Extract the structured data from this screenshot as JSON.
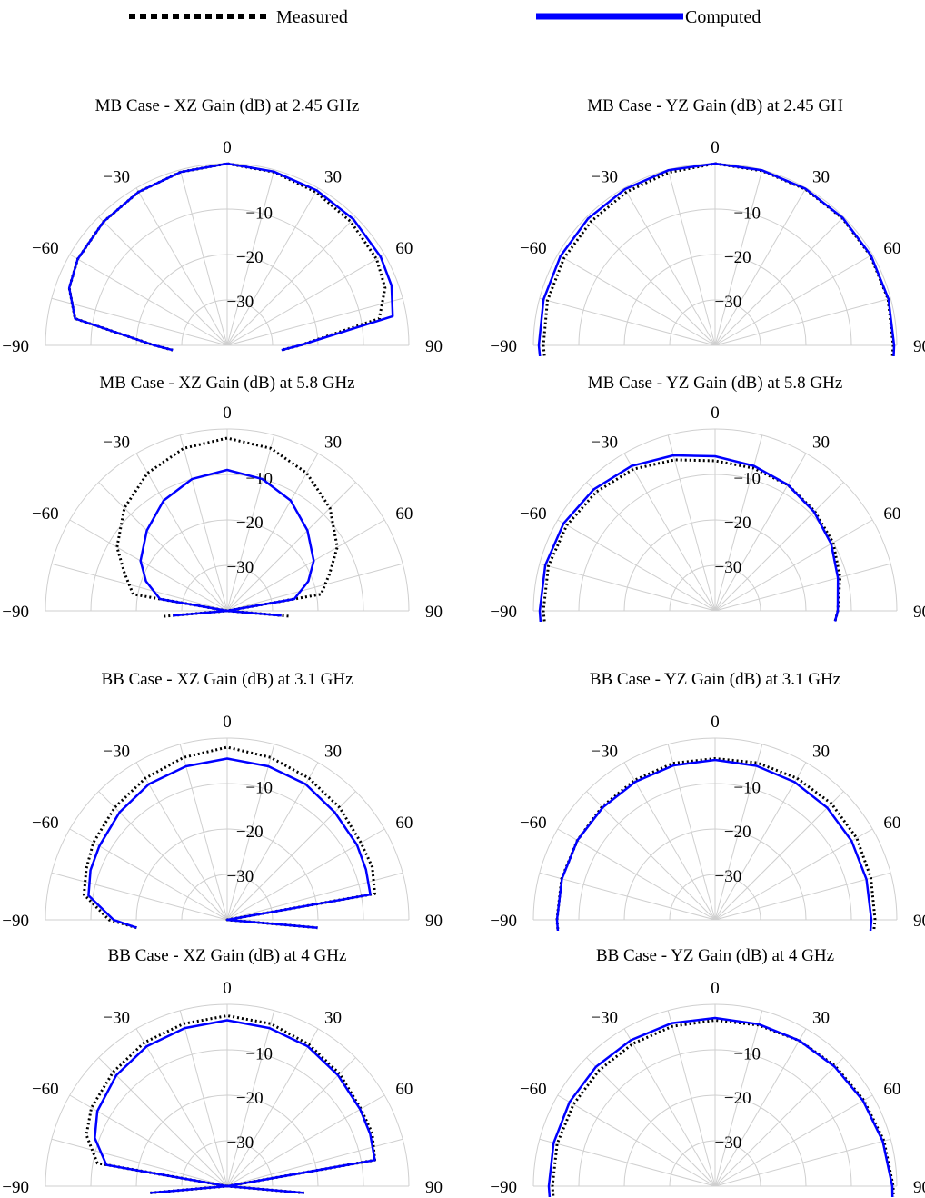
{
  "legend": {
    "measured_label": "Measured",
    "computed_label": "Computed",
    "measured_color": "#000000",
    "computed_color": "#0000ff",
    "placement": "top"
  },
  "polar_axes": {
    "r_ticks": [
      "-10",
      "-20",
      "-30"
    ],
    "theta_ticks": [
      "-90",
      "-60",
      "-30",
      "0",
      "30",
      "60",
      "90"
    ],
    "r_range": [
      -40,
      0
    ],
    "theta_range": [
      -90,
      90
    ],
    "grid": true
  },
  "chart_data": [
    {
      "type": "line",
      "title": "MB Case - XZ Gain (dB) at 2.45 GHz",
      "series": [
        {
          "name": "Measured",
          "style": "dotted",
          "theta": [
            -95,
            -90,
            -80,
            -70,
            -60,
            -45,
            -30,
            -15,
            0,
            15,
            30,
            45,
            60,
            70,
            80,
            90,
            95
          ],
          "r": [
            -28,
            -24,
            -6,
            -3,
            -2,
            -1.5,
            -1,
            -0.5,
            0,
            -0.5,
            -1,
            -1.5,
            -2,
            -3,
            -6,
            -24,
            -28
          ]
        },
        {
          "name": "Computed",
          "style": "solid",
          "theta": [
            -95,
            -90,
            -80,
            -70,
            -60,
            -45,
            -30,
            -15,
            0,
            15,
            30,
            45,
            60,
            70,
            80,
            90,
            95
          ],
          "r": [
            -28,
            -24,
            -6,
            -3,
            -2,
            -1.5,
            -1,
            -0.5,
            0,
            -0.4,
            -0.6,
            -0.7,
            -1,
            -1.5,
            -3,
            -24,
            -28
          ]
        }
      ]
    },
    {
      "type": "line",
      "title": "MB Case - YZ Gain (dB) at 2.45 GH",
      "series": [
        {
          "name": "Measured",
          "style": "dotted",
          "theta": [
            -95,
            -90,
            -75,
            -60,
            -45,
            -30,
            -15,
            0,
            15,
            30,
            45,
            60,
            75,
            90,
            95
          ],
          "r": [
            -2.4,
            -2.2,
            -1.8,
            -1.6,
            -1.4,
            -1,
            -0.6,
            0,
            -0.2,
            -0.3,
            -0.4,
            -0.5,
            -0.6,
            -0.8,
            -0.9
          ]
        },
        {
          "name": "Computed",
          "style": "solid",
          "theta": [
            -95,
            -90,
            -75,
            -60,
            -45,
            -30,
            -15,
            0,
            15,
            30,
            45,
            60,
            75,
            90,
            95
          ],
          "r": [
            -1.4,
            -1.2,
            -0.9,
            -0.7,
            -0.5,
            -0.3,
            -0.1,
            0,
            -0.1,
            -0.2,
            -0.3,
            -0.4,
            -0.5,
            -0.6,
            -0.6
          ]
        }
      ]
    },
    {
      "type": "line",
      "title": "MB Case - XZ Gain (dB) at 5.8 GHz",
      "series": [
        {
          "name": "Measured",
          "style": "dotted",
          "theta": [
            -95,
            -90,
            -80,
            -70,
            -60,
            -45,
            -30,
            -15,
            0,
            15,
            30,
            45,
            60,
            70,
            80,
            90,
            95
          ],
          "r": [
            -26,
            -40,
            -19,
            -16,
            -12,
            -8,
            -5,
            -3,
            -2,
            -3,
            -5,
            -8,
            -12,
            -16,
            -19,
            -40,
            -26
          ]
        },
        {
          "name": "Computed",
          "style": "solid",
          "theta": [
            -95,
            -90,
            -80,
            -70,
            -60,
            -45,
            -30,
            -15,
            0,
            15,
            30,
            45,
            60,
            70,
            80,
            90,
            95
          ],
          "r": [
            -28,
            -40,
            -25,
            -21,
            -18,
            -15,
            -12,
            -10,
            -9,
            -10,
            -12,
            -15,
            -18,
            -21,
            -25,
            -40,
            -28
          ]
        }
      ]
    },
    {
      "type": "line",
      "title": "MB Case - YZ Gain (dB) at 5.8 GHz",
      "series": [
        {
          "name": "Measured",
          "style": "dotted",
          "theta": [
            -95,
            -90,
            -75,
            -60,
            -45,
            -30,
            -15,
            0,
            15,
            30,
            45,
            60,
            75,
            90,
            95
          ],
          "r": [
            -2.4,
            -2.2,
            -2,
            -2.3,
            -3,
            -4,
            -5.6,
            -7,
            -7.5,
            -8,
            -9,
            -10,
            -11.5,
            -13,
            -13.5
          ]
        },
        {
          "name": "Computed",
          "style": "solid",
          "theta": [
            -95,
            -90,
            -75,
            -60,
            -45,
            -30,
            -15,
            0,
            15,
            30,
            45,
            60,
            75,
            90,
            95
          ],
          "r": [
            -1.5,
            -1.4,
            -1.3,
            -1.5,
            -2.2,
            -3.2,
            -4.6,
            -6,
            -7,
            -8,
            -9.2,
            -10.5,
            -12,
            -13,
            -13.5
          ]
        }
      ]
    },
    {
      "type": "line",
      "title": "BB Case - XZ Gain (dB) at 3.1 GHz",
      "series": [
        {
          "name": "Measured",
          "style": "dotted",
          "theta": [
            -95,
            -90,
            -80,
            -70,
            -60,
            -45,
            -30,
            -15,
            0,
            15,
            30,
            45,
            60,
            70,
            80,
            90,
            95
          ],
          "r": [
            -20,
            -14,
            -8,
            -7,
            -6,
            -5,
            -4,
            -3,
            -2,
            -3,
            -4,
            -5,
            -6,
            -6,
            -7,
            -40,
            -20
          ]
        },
        {
          "name": "Computed",
          "style": "solid",
          "theta": [
            -95,
            -90,
            -80,
            -70,
            -60,
            -45,
            -30,
            -15,
            0,
            15,
            30,
            45,
            60,
            70,
            80,
            90,
            95
          ],
          "r": [
            -20,
            -15,
            -9,
            -8,
            -7.5,
            -6.5,
            -5.5,
            -5,
            -4.5,
            -5,
            -5.5,
            -6.5,
            -7,
            -7.5,
            -8,
            -40,
            -20
          ]
        }
      ]
    },
    {
      "type": "line",
      "title": "BB Case - YZ Gain (dB) at 3.1 GHz",
      "series": [
        {
          "name": "Measured",
          "style": "dotted",
          "theta": [
            -95,
            -90,
            -75,
            -60,
            -45,
            -30,
            -15,
            0,
            15,
            30,
            45,
            60,
            75,
            90,
            95
          ],
          "r": [
            -5.3,
            -5.2,
            -5,
            -5,
            -4.8,
            -4.5,
            -4.3,
            -4.5,
            -4.2,
            -4,
            -3.8,
            -4,
            -4.5,
            -4.8,
            -5
          ]
        },
        {
          "name": "Computed",
          "style": "solid",
          "theta": [
            -95,
            -90,
            -75,
            -60,
            -45,
            -30,
            -15,
            0,
            15,
            30,
            45,
            60,
            75,
            90,
            95
          ],
          "r": [
            -5.3,
            -5.2,
            -5.1,
            -5,
            -5,
            -4.9,
            -4.8,
            -4.8,
            -4.9,
            -5,
            -5.1,
            -5.3,
            -5.5,
            -5.6,
            -5.7
          ]
        }
      ]
    },
    {
      "type": "line",
      "title": "BB Case - XZ Gain (dB) at 4 GHz",
      "series": [
        {
          "name": "Measured",
          "style": "dotted",
          "theta": [
            -95,
            -90,
            -80,
            -70,
            -60,
            -45,
            -30,
            -15,
            0,
            15,
            30,
            45,
            60,
            70,
            80,
            90,
            95
          ],
          "r": [
            -23,
            -40,
            -11,
            -7,
            -5.5,
            -4.5,
            -3.5,
            -3,
            -2.5,
            -3,
            -4,
            -5,
            -6,
            -6,
            -7,
            -40,
            -23
          ]
        },
        {
          "name": "Computed",
          "style": "solid",
          "theta": [
            -95,
            -90,
            -80,
            -70,
            -60,
            -45,
            -30,
            -15,
            0,
            15,
            30,
            45,
            60,
            70,
            80,
            90,
            95
          ],
          "r": [
            -23,
            -40,
            -13,
            -9,
            -7,
            -5.5,
            -4.5,
            -4,
            -3.5,
            -4,
            -4.5,
            -5.5,
            -6.2,
            -6.5,
            -7,
            -40,
            -23
          ]
        }
      ]
    },
    {
      "type": "line",
      "title": "BB Case - YZ Gain (dB) at 4 GHz",
      "series": [
        {
          "name": "Measured",
          "style": "dotted",
          "theta": [
            -95,
            -90,
            -75,
            -60,
            -45,
            -30,
            -15,
            0,
            15,
            30,
            45,
            60,
            75,
            90,
            95
          ],
          "r": [
            -4.3,
            -4.2,
            -4,
            -4,
            -3.9,
            -3.8,
            -3.6,
            -3.5,
            -3.3,
            -3,
            -2.6,
            -2.2,
            -1.5,
            -0.8,
            -0.6
          ]
        },
        {
          "name": "Computed",
          "style": "solid",
          "theta": [
            -95,
            -90,
            -75,
            -60,
            -45,
            -30,
            -15,
            0,
            15,
            30,
            45,
            60,
            75,
            90,
            95
          ],
          "r": [
            -3.5,
            -3.4,
            -3.2,
            -3,
            -2.9,
            -2.9,
            -2.9,
            -3,
            -3.1,
            -3,
            -2.8,
            -2.4,
            -1.8,
            -1,
            -0.8
          ]
        }
      ]
    }
  ]
}
